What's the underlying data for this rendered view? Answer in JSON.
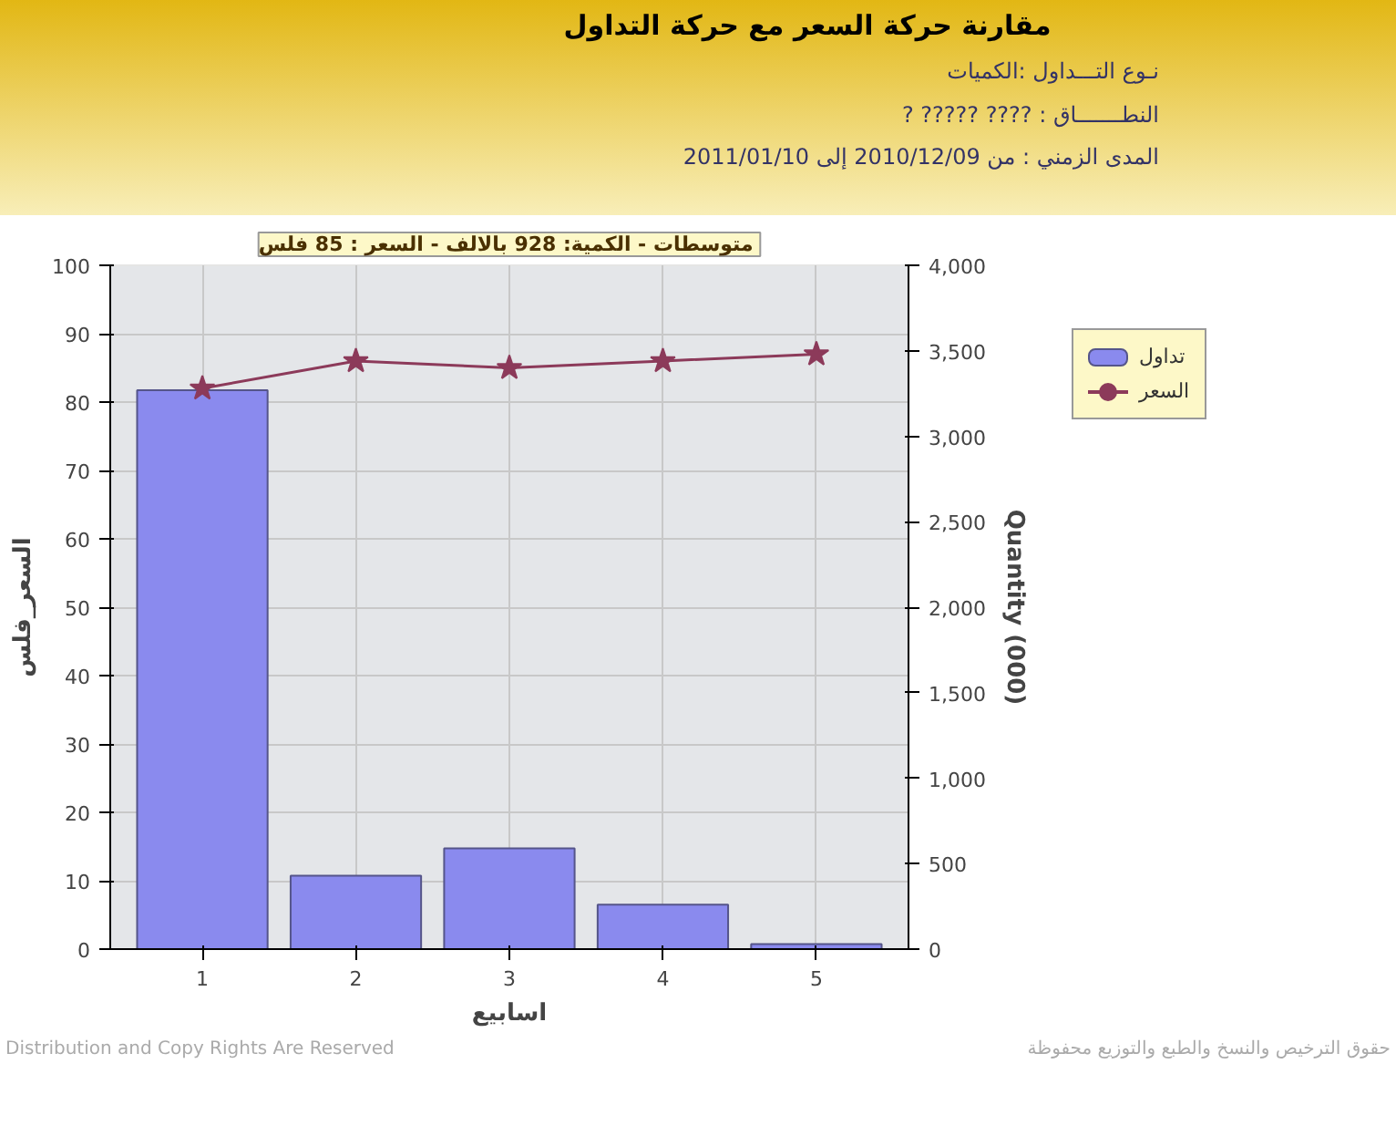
{
  "chart_data": {
    "type": "bar",
    "title": "مقارنة حركة السعر مع حركة التداول",
    "subtitle": "متوسطات - الكمية: 928 بالالف  - السعر : 85 فلس",
    "annotations": [
      "نـوع التـــداول :الكميات",
      "النطـــــــاق : ????     ????? ?",
      "المدى الزمني :   من 2010/12/09 إلى 2011/01/10",
      "Distribution and Copy Rights Are Reserved",
      "حقوق الترخيص والنسخ والطبع والتوزيع محفوظة"
    ],
    "categories": [
      "1",
      "2",
      "3",
      "4",
      "5"
    ],
    "xlabel": "اسابيع",
    "ylabel": "السعر_فلس",
    "y2label": "Quantity (000)",
    "series": [
      {
        "name": "تداول",
        "axis": "y2",
        "color": "#8a8aee",
        "values": [
          3270,
          430,
          590,
          260,
          30
        ]
      },
      {
        "name": "السعر",
        "type": "line",
        "color": "#8c3a5a",
        "marker": "star",
        "values": [
          82,
          86,
          85,
          86,
          87
        ]
      }
    ],
    "ylim": [
      0,
      100
    ],
    "yticks": [
      0,
      10,
      20,
      30,
      40,
      50,
      60,
      70,
      80,
      90,
      100
    ],
    "y2lim": [
      0,
      4000
    ],
    "y2ticks": [
      0,
      {
        "value": 500,
        "label": "500"
      },
      {
        "value": 1000,
        "label": "1,000"
      },
      {
        "value": 1500,
        "label": "1,500"
      },
      {
        "value": 2000,
        "label": "2,000"
      },
      {
        "value": 2500,
        "label": "2,500"
      },
      {
        "value": 3000,
        "label": "3,000"
      },
      {
        "value": 3500,
        "label": "3,500"
      },
      {
        "value": 4000,
        "label": "4,000"
      }
    ],
    "grid": true,
    "legend": "top right"
  }
}
